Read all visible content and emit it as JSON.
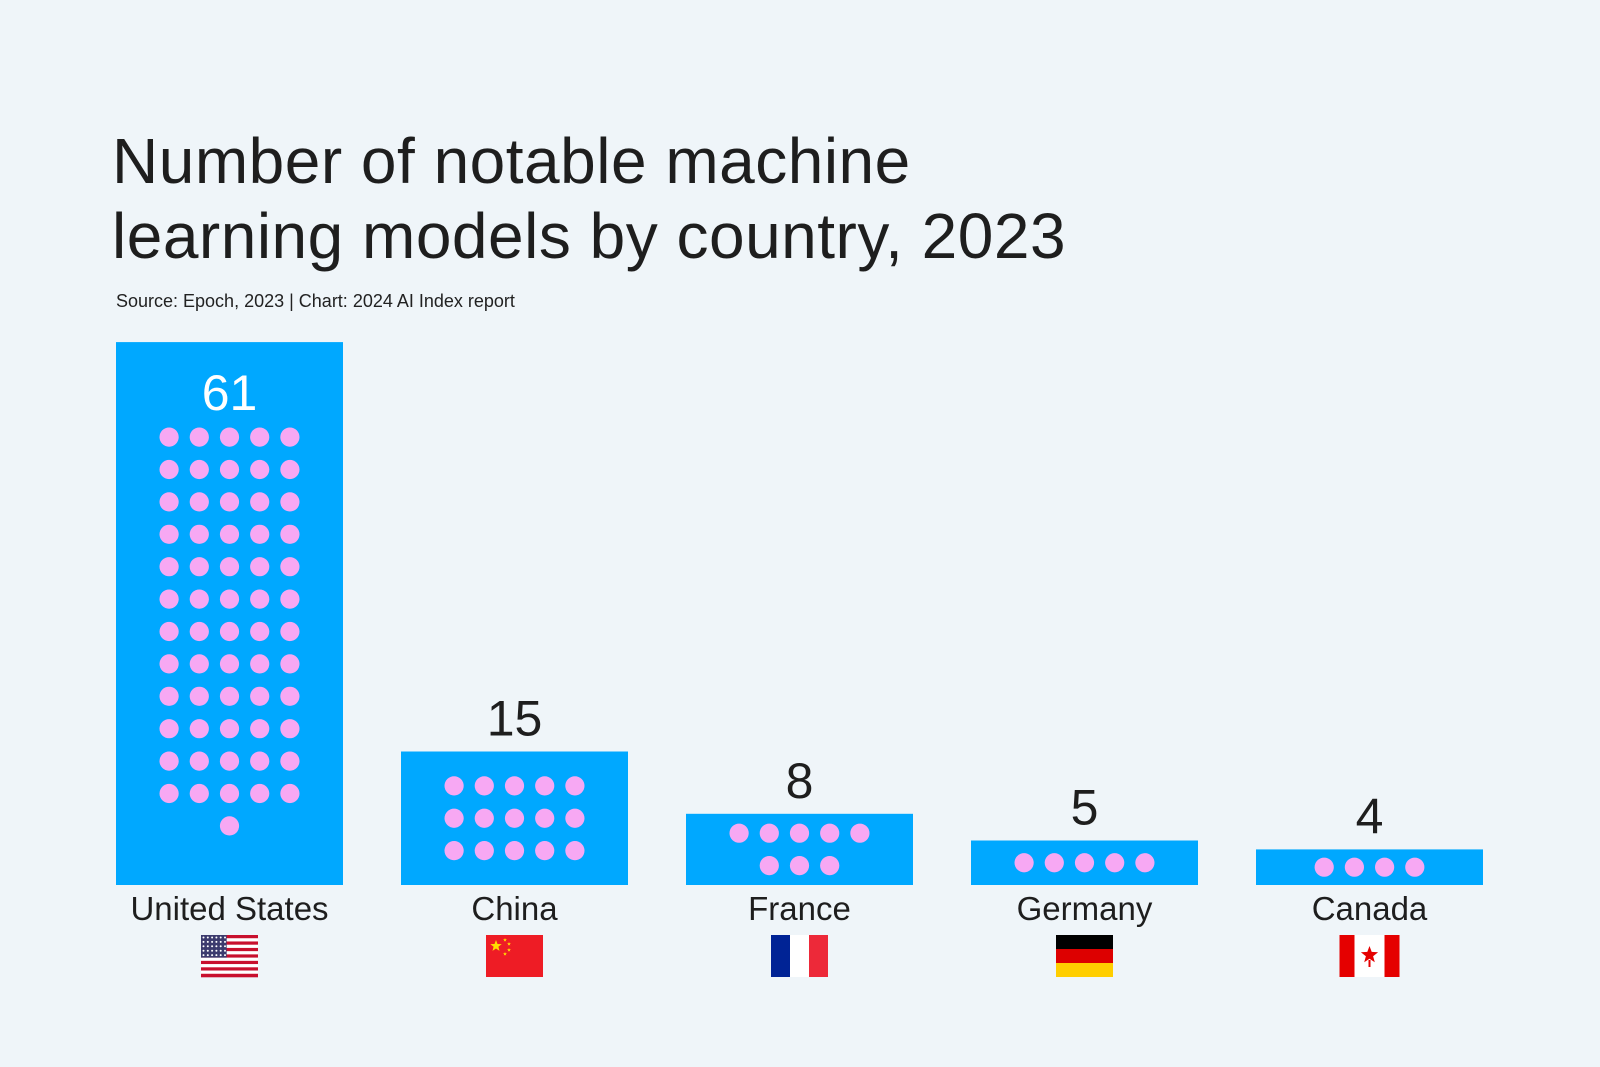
{
  "chart_data": {
    "type": "bar",
    "title_line1": "Number of notable machine",
    "title_line2": "learning models by country, 2023",
    "subtitle": "Source: Epoch, 2023 | Chart: 2024 AI Index report",
    "categories": [
      "United States",
      "China",
      "France",
      "Germany",
      "Canada"
    ],
    "values": [
      61,
      15,
      8,
      5,
      4
    ],
    "flags": [
      "us-flag-icon",
      "china-flag-icon",
      "france-flag-icon",
      "germany-flag-icon",
      "canada-flag-icon"
    ],
    "xlabel": "",
    "ylabel": "",
    "grid": false,
    "colors": {
      "bar": "#00a8ff",
      "dot": "#f7a8f3",
      "inside_label": "#ffffff",
      "label": "#1e1e1e",
      "background": "#eff5f9"
    }
  }
}
